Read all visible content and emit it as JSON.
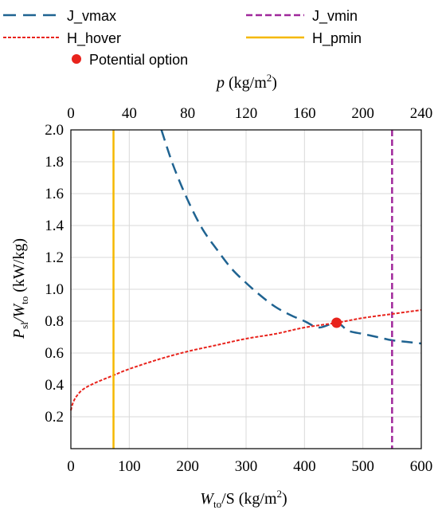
{
  "chart_data": {
    "type": "line",
    "legend": {
      "placement": "top",
      "entries": [
        {
          "name": "J_vmax",
          "style": "dashed",
          "color": "#1f6391"
        },
        {
          "name": "J_vmin",
          "style": "dashed",
          "color": "#a0289b"
        },
        {
          "name": "H_hover",
          "style": "dotted",
          "color": "#e8231c"
        },
        {
          "name": "H_pmin",
          "style": "solid",
          "color": "#f5b800"
        },
        {
          "name": "Potential option",
          "style": "marker",
          "color": "#e8231c"
        }
      ]
    },
    "x_axis": {
      "label": {
        "main": "W",
        "sub": "to",
        "rest": "/S (kg/m",
        "sup": "2",
        "end": ")"
      },
      "range": [
        0,
        600
      ],
      "ticks": [
        0,
        100,
        200,
        300,
        400,
        500,
        600
      ],
      "tick_labels": [
        "0",
        "100",
        "200",
        "300",
        "400",
        "500",
        "600"
      ]
    },
    "x2_axis": {
      "label": {
        "main": "p",
        "rest": " (kg/m",
        "sup": "2",
        "end": ")"
      },
      "range": [
        0,
        240
      ],
      "ticks": [
        0,
        40,
        80,
        120,
        160,
        200,
        240
      ],
      "tick_labels": [
        "0",
        "40",
        "80",
        "120",
        "160",
        "200",
        "240"
      ]
    },
    "y_axis": {
      "label": {
        "main": "P",
        "sub1": "sl",
        "mid": "/W",
        "sub2": "to",
        "rest": " (kW/kg)"
      },
      "range": [
        0.0,
        2.0
      ],
      "ticks": [
        0.2,
        0.4,
        0.6,
        0.8,
        1.0,
        1.2,
        1.4,
        1.6,
        1.8,
        2.0
      ],
      "tick_labels": [
        "0.2",
        "0.4",
        "0.6",
        "0.8",
        "1.0",
        "1.2",
        "1.4",
        "1.6",
        "1.8",
        "2.0"
      ]
    },
    "grid": true,
    "series": [
      {
        "name": "J_vmax",
        "kind": "curve",
        "color": "#1f6391",
        "dash": "dashed",
        "points": [
          [
            155,
            2.0
          ],
          [
            175,
            1.78
          ],
          [
            200,
            1.56
          ],
          [
            225,
            1.38
          ],
          [
            250,
            1.25
          ],
          [
            275,
            1.13
          ],
          [
            300,
            1.04
          ],
          [
            325,
            0.96
          ],
          [
            350,
            0.89
          ],
          [
            375,
            0.84
          ],
          [
            400,
            0.8
          ],
          [
            425,
            0.76
          ],
          [
            455,
            0.79
          ],
          [
            475,
            0.74
          ],
          [
            500,
            0.72
          ],
          [
            525,
            0.7
          ],
          [
            550,
            0.68
          ],
          [
            575,
            0.67
          ],
          [
            600,
            0.66
          ]
        ]
      },
      {
        "name": "J_vmin",
        "kind": "vline",
        "color": "#a0289b",
        "dash": "dashed",
        "x": 550
      },
      {
        "name": "H_hover",
        "kind": "curve",
        "color": "#e8231c",
        "dash": "dotted",
        "points": [
          [
            0,
            0.24
          ],
          [
            2,
            0.27
          ],
          [
            5,
            0.3
          ],
          [
            10,
            0.33
          ],
          [
            20,
            0.37
          ],
          [
            40,
            0.41
          ],
          [
            73,
            0.46
          ],
          [
            100,
            0.5
          ],
          [
            150,
            0.56
          ],
          [
            200,
            0.61
          ],
          [
            250,
            0.65
          ],
          [
            300,
            0.69
          ],
          [
            350,
            0.72
          ],
          [
            400,
            0.76
          ],
          [
            455,
            0.79
          ],
          [
            500,
            0.82
          ],
          [
            550,
            0.845
          ],
          [
            600,
            0.87
          ]
        ]
      },
      {
        "name": "H_pmin",
        "kind": "vline",
        "color": "#f5b800",
        "dash": "solid",
        "x": 73
      },
      {
        "name": "Potential option",
        "kind": "marker",
        "color": "#e8231c",
        "x": 455,
        "y": 0.79
      }
    ]
  }
}
